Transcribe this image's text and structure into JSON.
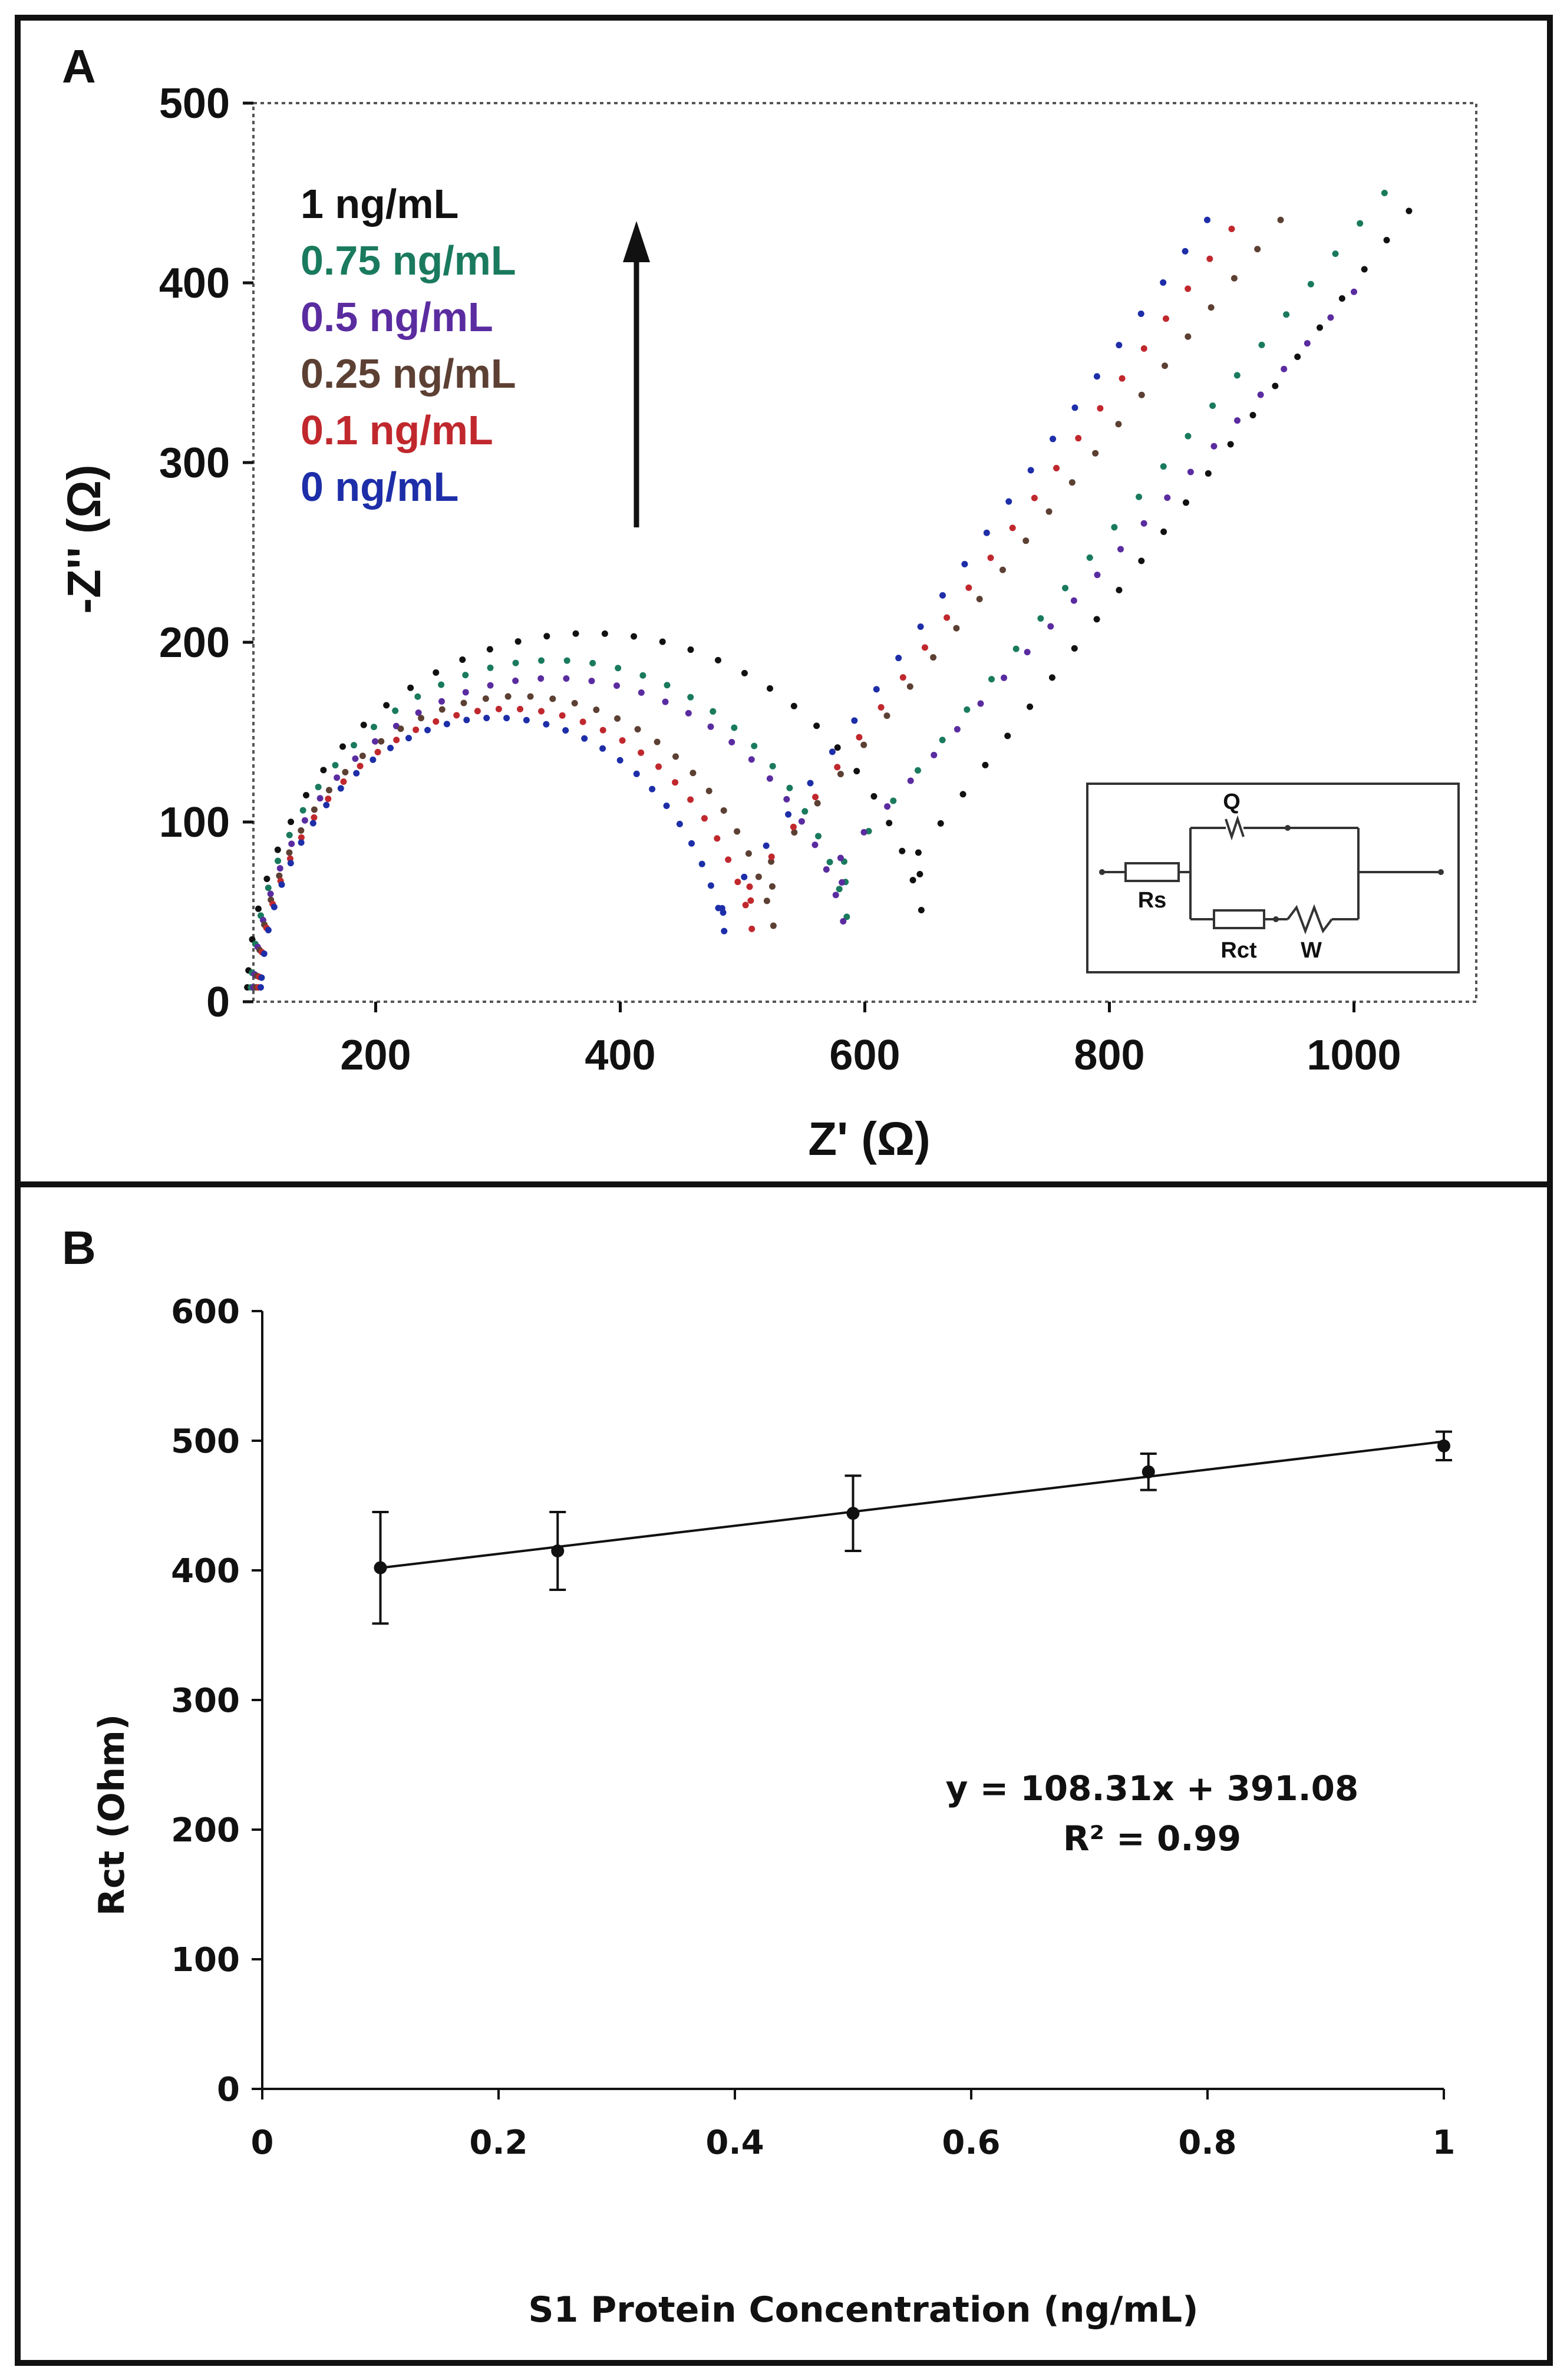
{
  "chart_data": [
    {
      "panel": "A",
      "type": "scatter",
      "xlabel": "Z' (Ω)",
      "ylabel": "-Z'' (Ω)",
      "xlim": [
        100,
        1100
      ],
      "ylim": [
        0,
        500
      ],
      "xticks": [
        "200",
        "400",
        "600",
        "800",
        "1000"
      ],
      "yticks": [
        "0",
        "100",
        "200",
        "300",
        "400",
        "500"
      ],
      "legend_placement": "top-left",
      "arrow": "up",
      "series": [
        {
          "name": "1 ng/mL",
          "color": "#111111",
          "rs": 95,
          "rct": 560,
          "peak": 205,
          "min_y": 83,
          "tail": [
            [
              1045,
              440
            ]
          ]
        },
        {
          "name": "0.75 ng/mL",
          "color": "#1a7a5e",
          "rs": 98,
          "rct": 495,
          "peak": 190,
          "min_y": 78,
          "tail": [
            [
              1025,
              450
            ]
          ]
        },
        {
          "name": "0.5 ng/mL",
          "color": "#5a2ca0",
          "rs": 100,
          "rct": 490,
          "peak": 180,
          "min_y": 80,
          "tail": [
            [
              1000,
              395
            ]
          ]
        },
        {
          "name": "0.25 ng/mL",
          "color": "#5c4033",
          "rs": 102,
          "rct": 430,
          "peak": 170,
          "min_y": 78,
          "tail": [
            [
              940,
              435
            ]
          ]
        },
        {
          "name": "0.1 ng/mL",
          "color": "#c0282d",
          "rs": 104,
          "rct": 410,
          "peak": 163,
          "min_y": 64,
          "tail": [
            [
              900,
              430
            ]
          ]
        },
        {
          "name": "0 ng/mL",
          "color": "#1d2ea8",
          "rs": 106,
          "rct": 385,
          "peak": 158,
          "min_y": 52,
          "tail": [
            [
              880,
              435
            ]
          ]
        }
      ],
      "inset_circuit": {
        "labels": [
          "Q",
          "Rs",
          "Rct",
          "W"
        ]
      }
    },
    {
      "panel": "B",
      "type": "line",
      "xlabel": "S1 Protein Concentration (ng/mL)",
      "ylabel": "Rct (Ohm)",
      "xlim": [
        0,
        1
      ],
      "ylim": [
        0,
        600
      ],
      "xticks": [
        "0",
        "0.2",
        "0.4",
        "0.6",
        "0.8",
        "1"
      ],
      "yticks": [
        "0",
        "100",
        "200",
        "300",
        "400",
        "500",
        "600"
      ],
      "points": [
        {
          "x": 0.1,
          "y": 402,
          "err": 43
        },
        {
          "x": 0.25,
          "y": 415,
          "err": 30
        },
        {
          "x": 0.5,
          "y": 444,
          "err": 29
        },
        {
          "x": 0.75,
          "y": 476,
          "err": 14
        },
        {
          "x": 1.0,
          "y": 496,
          "err": 11
        }
      ],
      "fit": {
        "slope": 108.31,
        "intercept": 391.08
      },
      "equation": "y = 108.31x + 391.08",
      "r2": "R² = 0.99"
    }
  ],
  "panels": {
    "a_letter": "A",
    "b_letter": "B"
  }
}
